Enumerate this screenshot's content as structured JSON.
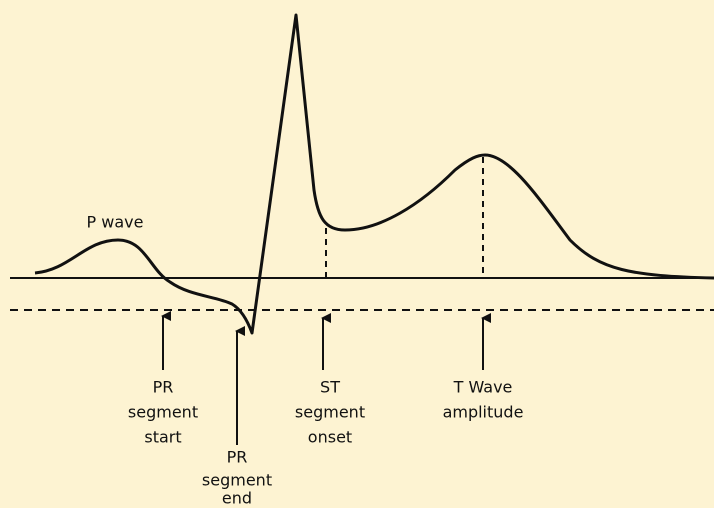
{
  "waveform_label": "P wave",
  "annotations": [
    {
      "lines": [
        "PR",
        "segment",
        "start"
      ]
    },
    {
      "lines": [
        "PR",
        "segment",
        "end"
      ]
    },
    {
      "lines": [
        "ST",
        "segment",
        "onset"
      ]
    },
    {
      "lines": [
        "T Wave",
        "amplitude"
      ]
    }
  ]
}
